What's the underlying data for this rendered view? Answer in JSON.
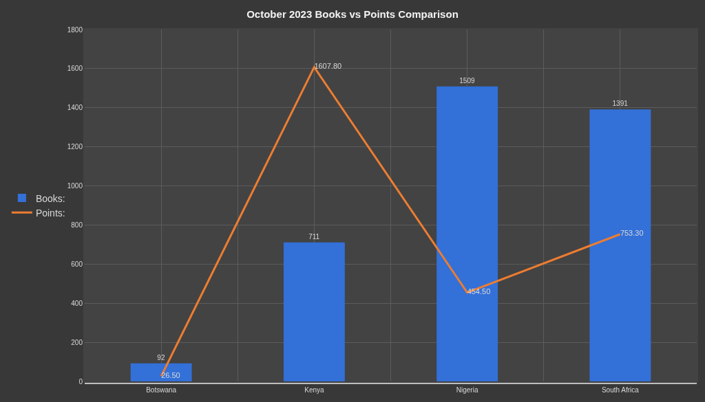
{
  "chart_data": {
    "type": "bar",
    "title": "October 2023 Books vs Points Comparison",
    "categories": [
      "Botswana",
      "Kenya",
      "Nigeria",
      "South Africa"
    ],
    "series": [
      {
        "name": "Books:",
        "color": "#3370d8",
        "values": [
          92,
          711,
          1509,
          1391
        ],
        "value_labels": [
          "92",
          "711",
          "1509",
          "1391"
        ]
      },
      {
        "name": "Points:",
        "type": "line",
        "color": "#ed7d31",
        "values": [
          26.5,
          1607.8,
          454.5,
          753.3
        ],
        "value_labels": [
          "26.50",
          "1607.80",
          "454.50",
          "753.30"
        ]
      }
    ],
    "ylim": [
      0,
      1800
    ],
    "yticks": [
      0,
      200,
      400,
      600,
      800,
      1000,
      1200,
      1400,
      1600,
      1800
    ],
    "grid": true,
    "legend": "left",
    "marker": "none",
    "line_style": "solid"
  }
}
